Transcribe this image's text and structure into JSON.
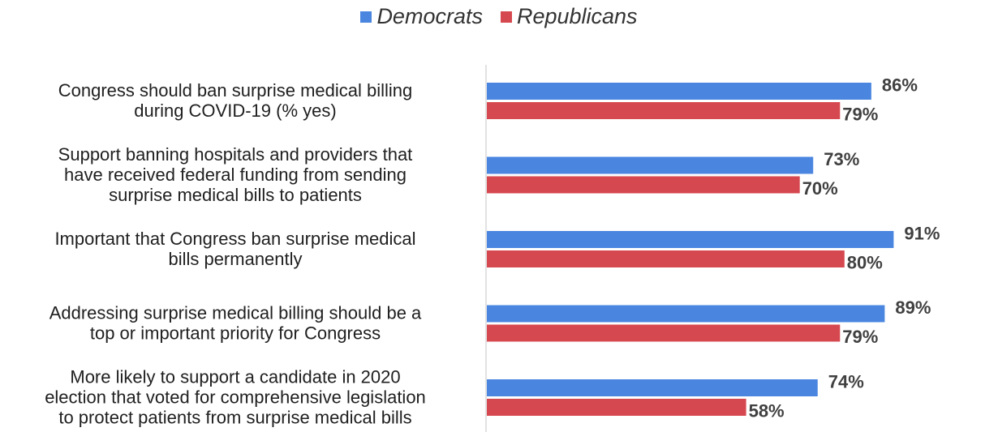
{
  "chart_data": {
    "type": "bar",
    "orientation": "horizontal",
    "legend_position": "top-center",
    "grid": false,
    "xlim": [
      0,
      100
    ],
    "value_format": "percent",
    "categories": [
      [
        "Congress should ban surprise medical billing",
        "during COVID-19  (% yes)"
      ],
      [
        "Support banning hospitals and providers that",
        "have received federal funding from sending",
        "surprise medical bills to patients"
      ],
      [
        "Important that Congress ban surprise medical",
        "bills permanently"
      ],
      [
        "Addressing surprise medical billing should be a",
        "top or important priority for Congress"
      ],
      [
        "More likely to support a candidate in 2020",
        "election that voted for comprehensive legislation",
        "to protect patients from surprise medical bills"
      ]
    ],
    "series": [
      {
        "name": "Democrats",
        "color": "#4a86e0",
        "values": [
          86,
          73,
          91,
          89,
          74
        ]
      },
      {
        "name": "Republicans",
        "color": "#d6484f",
        "values": [
          79,
          70,
          80,
          79,
          58
        ]
      }
    ]
  }
}
